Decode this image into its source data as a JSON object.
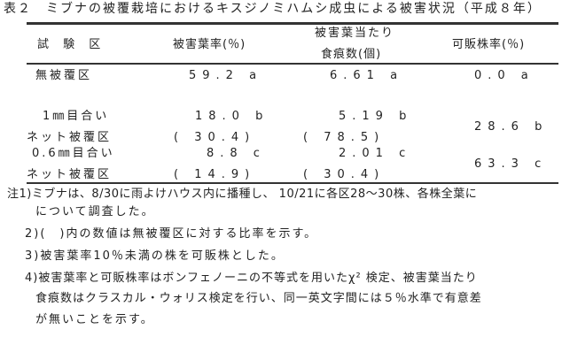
{
  "title": "表２　ミブナの被覆栽培におけるキスジノミハムシ成虫による被害状況（平成８年）",
  "table": {
    "headers": {
      "col1": "試 験 区",
      "col2": "被害葉率(％)",
      "col3_line1": "被害葉当たり",
      "col3_line2": "食痕数(個)",
      "col4": "可販株率(％)"
    },
    "rows": [
      {
        "name_line1": "無被覆区",
        "damaged_leaf_rate": "59.2 a",
        "feeding_marks": "6.61 a",
        "marketable_rate": "0.0 a"
      },
      {
        "name_line1": "1㎜目合い",
        "name_line2": "ネット被覆区",
        "damaged_leaf_rate": "18.0 b",
        "damaged_leaf_ratio": "( 30.4)",
        "feeding_marks": "5.19 b",
        "feeding_marks_ratio": "( 78.5)",
        "marketable_rate": "28.6 b"
      },
      {
        "name_line1": "0.6㎜目合い",
        "name_line2": "ネット被覆区",
        "damaged_leaf_rate": "8.8 c",
        "damaged_leaf_ratio": "( 14.9)",
        "feeding_marks": "2.01 c",
        "feeding_marks_ratio": "( 30.4)",
        "marketable_rate": "63.3 c"
      }
    ]
  },
  "notes": [
    "注1)ミブナは、8/30に雨よけハウス内に播種し、 10/21に各区28～30株、各株全葉に",
    "について調査した。",
    "2)(　)内の数値は無被覆区に対する比率を示す。",
    "3)被害葉率10％未満の株を可販株とした。",
    "4)被害葉率と可販株率はボンフェノーニの不等式を用いたχ² 検定、被害葉当たり",
    "食痕数はクラスカル・ウォリス検定を行い、同一英文字間には５％水準で有意差",
    "が無いことを示す。"
  ]
}
